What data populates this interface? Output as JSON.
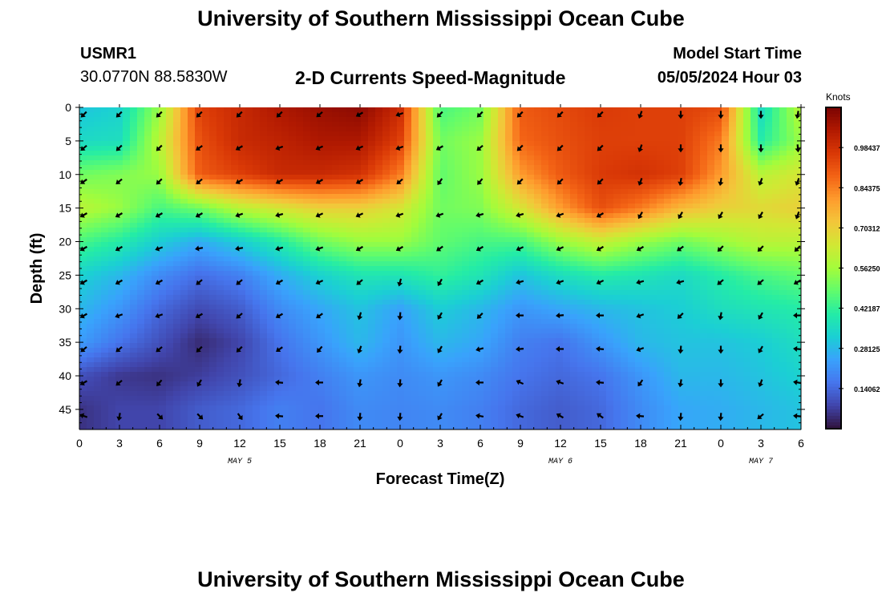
{
  "header": {
    "title": "University of Southern Mississippi Ocean Cube",
    "station_id": "USMR1",
    "station_coords": "30.0770N  88.5830W",
    "model_start_label": "Model Start Time",
    "model_start_value": "05/05/2024 Hour 03"
  },
  "footer": {
    "repeated_title": "University of Southern Mississippi Ocean Cube"
  },
  "colors": {
    "colormap": [
      "#30123b",
      "#4145ab",
      "#4675ed",
      "#39a2fc",
      "#1bcfd4",
      "#24eca6",
      "#61fc6c",
      "#a4fc3b",
      "#d1e834",
      "#f3c63a",
      "#fe9b2d",
      "#f36315",
      "#d93806",
      "#b11901",
      "#7a0402"
    ],
    "arrow": "#000000",
    "axis": "#000000"
  },
  "chart_data": {
    "type": "heatmap",
    "title": "2-D Currents Speed-Magnitude",
    "xlabel": "Forecast Time(Z)",
    "ylabel": "Depth (ft)",
    "x_tick_labels": [
      "0",
      "3",
      "6",
      "9",
      "12",
      "15",
      "18",
      "21",
      "0",
      "3",
      "6",
      "9",
      "12",
      "15",
      "18",
      "21",
      "0",
      "3",
      "6"
    ],
    "date_labels": [
      {
        "label": "MAY 5",
        "at_tick": 4
      },
      {
        "label": "MAY 6",
        "at_tick": 12
      },
      {
        "label": "MAY 7",
        "at_tick": 17
      }
    ],
    "y_tick_labels": [
      "0",
      "5",
      "10",
      "15",
      "20",
      "25",
      "30",
      "35",
      "40",
      "45"
    ],
    "ylim": [
      0,
      48
    ],
    "y_inverted": true,
    "colorbar": {
      "title": "Knots",
      "range": [
        0,
        1.125
      ],
      "tick_values": [
        0.140625,
        0.28125,
        0.421875,
        0.5625,
        0.703125,
        0.84375,
        0.984375
      ],
      "tick_labels": [
        "0.14062",
        "0.28125",
        "0.42187",
        "0.56250",
        "0.70312",
        "0.84375",
        "0.98437"
      ]
    },
    "depths_ft": [
      0,
      5,
      10,
      15,
      20,
      25,
      30,
      35,
      40,
      45
    ],
    "speed_knots": [
      [
        0.3,
        0.33,
        0.55,
        0.95,
        1.0,
        1.05,
        1.08,
        1.1,
        1.0,
        0.45,
        0.5,
        0.9,
        0.93,
        0.96,
        0.95,
        0.95,
        0.93,
        0.35,
        0.6
      ],
      [
        0.35,
        0.36,
        0.6,
        0.92,
        1.0,
        1.02,
        1.05,
        1.05,
        0.95,
        0.5,
        0.55,
        0.88,
        0.92,
        0.95,
        0.95,
        0.95,
        0.85,
        0.4,
        0.55
      ],
      [
        0.5,
        0.52,
        0.55,
        0.9,
        0.95,
        1.0,
        1.0,
        0.98,
        0.85,
        0.48,
        0.55,
        0.8,
        0.9,
        0.96,
        0.98,
        0.95,
        0.8,
        0.6,
        0.65
      ],
      [
        0.6,
        0.55,
        0.45,
        0.5,
        0.6,
        0.65,
        0.7,
        0.7,
        0.65,
        0.5,
        0.52,
        0.65,
        0.8,
        0.92,
        0.85,
        0.75,
        0.7,
        0.68,
        0.7
      ],
      [
        0.45,
        0.4,
        0.32,
        0.26,
        0.32,
        0.4,
        0.5,
        0.55,
        0.55,
        0.48,
        0.45,
        0.45,
        0.55,
        0.62,
        0.55,
        0.5,
        0.55,
        0.6,
        0.6
      ],
      [
        0.33,
        0.28,
        0.2,
        0.15,
        0.18,
        0.26,
        0.33,
        0.38,
        0.38,
        0.42,
        0.38,
        0.3,
        0.36,
        0.4,
        0.38,
        0.35,
        0.4,
        0.45,
        0.48
      ],
      [
        0.28,
        0.22,
        0.14,
        0.09,
        0.12,
        0.2,
        0.25,
        0.3,
        0.24,
        0.32,
        0.28,
        0.22,
        0.25,
        0.28,
        0.3,
        0.32,
        0.36,
        0.38,
        0.4
      ],
      [
        0.23,
        0.16,
        0.1,
        0.04,
        0.08,
        0.16,
        0.22,
        0.28,
        0.22,
        0.28,
        0.25,
        0.18,
        0.16,
        0.22,
        0.28,
        0.3,
        0.3,
        0.32,
        0.36
      ],
      [
        0.1,
        0.06,
        0.05,
        0.07,
        0.1,
        0.14,
        0.18,
        0.22,
        0.2,
        0.22,
        0.2,
        0.16,
        0.14,
        0.16,
        0.22,
        0.28,
        0.28,
        0.3,
        0.33
      ],
      [
        0.05,
        0.08,
        0.08,
        0.12,
        0.14,
        0.18,
        0.16,
        0.2,
        0.19,
        0.2,
        0.18,
        0.14,
        0.12,
        0.14,
        0.2,
        0.25,
        0.26,
        0.28,
        0.3
      ]
    ],
    "arrow_direction_deg": [
      [
        225,
        225,
        225,
        225,
        225,
        225,
        230,
        240,
        250,
        225,
        225,
        225,
        225,
        225,
        200,
        180,
        180,
        180,
        190
      ],
      [
        230,
        225,
        225,
        235,
        240,
        250,
        245,
        245,
        250,
        240,
        230,
        225,
        225,
        225,
        200,
        180,
        180,
        180,
        175
      ],
      [
        235,
        230,
        225,
        230,
        240,
        240,
        240,
        240,
        230,
        215,
        220,
        225,
        225,
        225,
        200,
        190,
        190,
        200,
        200
      ],
      [
        240,
        240,
        240,
        240,
        250,
        255,
        245,
        245,
        250,
        250,
        255,
        255,
        250,
        240,
        210,
        210,
        210,
        210,
        200
      ],
      [
        240,
        240,
        250,
        260,
        260,
        255,
        250,
        240,
        240,
        235,
        240,
        245,
        245,
        240,
        240,
        235,
        225,
        225,
        225
      ],
      [
        240,
        240,
        240,
        230,
        230,
        240,
        245,
        230,
        195,
        210,
        240,
        255,
        250,
        245,
        255,
        255,
        230,
        230,
        240
      ],
      [
        240,
        250,
        250,
        240,
        230,
        240,
        235,
        195,
        185,
        210,
        225,
        270,
        265,
        270,
        250,
        225,
        190,
        210,
        270
      ],
      [
        230,
        230,
        230,
        225,
        225,
        235,
        220,
        200,
        185,
        210,
        255,
        265,
        270,
        275,
        250,
        185,
        180,
        210,
        275
      ],
      [
        240,
        230,
        220,
        210,
        190,
        275,
        270,
        190,
        185,
        210,
        270,
        295,
        290,
        275,
        215,
        190,
        180,
        200,
        280
      ],
      [
        290,
        190,
        135,
        135,
        145,
        275,
        270,
        185,
        185,
        210,
        280,
        290,
        300,
        305,
        275,
        185,
        185,
        230,
        275
      ]
    ]
  }
}
